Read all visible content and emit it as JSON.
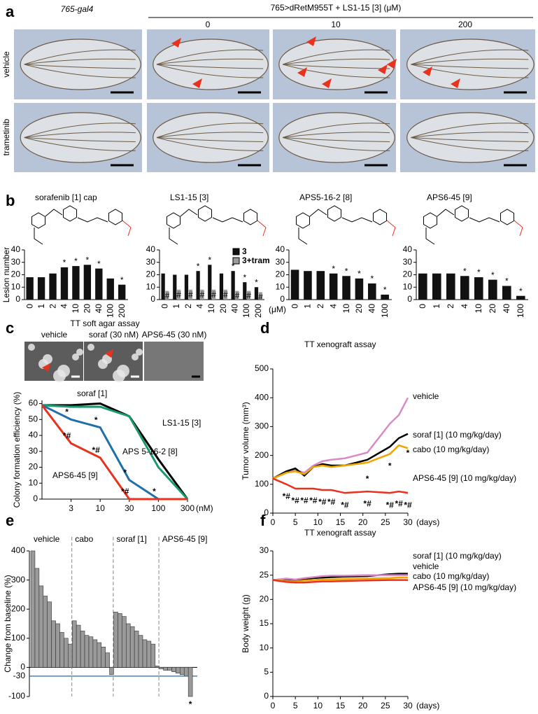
{
  "panel_labels": [
    "a",
    "b",
    "c",
    "d",
    "e",
    "f"
  ],
  "panel_a": {
    "control_header": "765-gal4",
    "treatment_header": "765>dRetM955T + LS1-15 [3] (μM)",
    "doses": [
      "0",
      "10",
      "200"
    ],
    "rows": [
      "vehicle",
      "trametinib"
    ]
  },
  "panel_c_images": {
    "title": "TT soft agar assay",
    "labels": [
      "vehicle",
      "soraf (30 nM)",
      "APS6-45 (30 nM)"
    ]
  },
  "chart_data": [
    {
      "type": "bar",
      "title": "sorafenib [1] cap",
      "title_color": "#000000",
      "ylabel": "Lesion number",
      "categories": [
        "0",
        "1",
        "2",
        "4",
        "10",
        "20",
        "40",
        "100",
        "200"
      ],
      "values": [
        18,
        18,
        21,
        26,
        27,
        28,
        25,
        17,
        12
      ],
      "color": "#111111",
      "significance": [
        null,
        null,
        null,
        "*",
        "*",
        "*",
        "*",
        null,
        "*"
      ],
      "ylim": [
        0,
        40
      ],
      "yticks": [
        0,
        10,
        20,
        30,
        40
      ]
    },
    {
      "type": "bar",
      "title": "LS1-15 [3]",
      "title_color": "#1a9a6a",
      "xlabel": "(μM)",
      "categories": [
        "0",
        "1",
        "2",
        "4",
        "10",
        "20",
        "40",
        "100",
        "200"
      ],
      "series": [
        {
          "name": "3",
          "color": "#111111",
          "values": [
            21,
            20,
            20,
            23,
            28,
            21,
            23,
            14,
            10
          ],
          "significance": [
            null,
            null,
            null,
            "*",
            "*",
            null,
            "*",
            "*",
            "*"
          ]
        },
        {
          "name": "3+tram",
          "color": "#9a9a9a",
          "values": [
            7,
            8,
            8,
            8,
            8,
            8,
            7,
            7,
            6
          ],
          "significance": [
            "#",
            "#",
            "#",
            "#",
            "#",
            "#",
            "#",
            "#",
            "#"
          ]
        }
      ],
      "ylim": [
        0,
        40
      ],
      "yticks": [
        0,
        10,
        20,
        30,
        40
      ]
    },
    {
      "type": "bar",
      "title": "APS5-16-2 [8]",
      "title_color": "#1f6fa8",
      "categories": [
        "0",
        "1",
        "2",
        "4",
        "10",
        "20",
        "40",
        "100"
      ],
      "values": [
        24,
        23,
        23,
        21,
        19,
        17,
        13,
        4
      ],
      "color": "#111111",
      "significance": [
        null,
        null,
        null,
        "*",
        "*",
        "*",
        "*",
        "*"
      ],
      "ylim": [
        0,
        40
      ],
      "yticks": [
        0,
        10,
        20,
        30,
        40
      ]
    },
    {
      "type": "bar",
      "title": "APS6-45 [9]",
      "title_color": "#e8321e",
      "categories": [
        "0",
        "1",
        "2",
        "4",
        "10",
        "20",
        "40",
        "100"
      ],
      "values": [
        21,
        21,
        21,
        19,
        18,
        16,
        11,
        3
      ],
      "color": "#111111",
      "significance": [
        null,
        null,
        null,
        "*",
        "*",
        "*",
        "*",
        "*"
      ],
      "ylim": [
        0,
        40
      ],
      "yticks": [
        0,
        10,
        20,
        30,
        40
      ]
    },
    {
      "type": "catline",
      "ylabel": "Colony formation efficiency (%)",
      "xlabel": "(nM)",
      "categories": [
        null,
        "3",
        "10",
        "30",
        "100",
        "300"
      ],
      "series": [
        {
          "name": "soraf [1]",
          "color": "#000000",
          "values": [
            59,
            59,
            60,
            52,
            25,
            0
          ],
          "significance": [
            null,
            null,
            null,
            null,
            null,
            null
          ]
        },
        {
          "name": "LS1-15 [3]",
          "color": "#1a9a6a",
          "values": [
            59,
            58,
            58,
            52,
            20,
            0
          ],
          "significance": [
            null,
            null,
            null,
            null,
            null,
            null
          ]
        },
        {
          "name": "APS 5-16-2 [8]",
          "color": "#1f6fa8",
          "values": [
            59,
            50,
            45,
            12,
            0,
            0
          ],
          "significance": [
            null,
            "*",
            "*",
            "*",
            "*",
            null
          ]
        },
        {
          "name": "APS6-45 [9]",
          "color": "#e8321e",
          "values": [
            59,
            35,
            26,
            0,
            0,
            0
          ],
          "significance": [
            null,
            "*#",
            "*#",
            "*#",
            null,
            null
          ]
        }
      ],
      "ylim": [
        0,
        62
      ],
      "yticks": [
        0,
        10,
        20,
        30,
        40,
        50,
        60
      ]
    },
    {
      "type": "line",
      "title": "TT xenograft assay",
      "ylabel": "Tumor volume (mm³)",
      "xlabel": "(days)",
      "x": [
        0,
        3,
        5,
        7,
        9,
        11,
        13,
        16,
        21,
        26,
        28,
        30
      ],
      "series": [
        {
          "name": "vehicle",
          "color": "#d98ac4",
          "values": [
            120,
            140,
            150,
            140,
            165,
            180,
            185,
            190,
            210,
            310,
            340,
            400
          ],
          "significance": null
        },
        {
          "name": "soraf [1] (10 mg/kg/day)",
          "color": "#000000",
          "values": [
            120,
            145,
            155,
            130,
            160,
            170,
            165,
            165,
            185,
            230,
            260,
            275
          ],
          "significance": [
            null,
            null,
            null,
            null,
            null,
            null,
            null,
            null,
            "*",
            "*",
            null,
            "*"
          ]
        },
        {
          "name": "cabo (10 mg/kg/day)",
          "color": "#f0a500",
          "values": [
            120,
            140,
            145,
            135,
            160,
            165,
            160,
            165,
            175,
            205,
            235,
            225
          ],
          "significance": null
        },
        {
          "name": "APS6-45 [9] (10 mg/kg/day)",
          "color": "#e8321e",
          "values": [
            120,
            100,
            85,
            85,
            85,
            80,
            80,
            70,
            75,
            70,
            75,
            70
          ],
          "significance": [
            null,
            "*#",
            "*#",
            "*#",
            "*#",
            "*#",
            "*#",
            "*#",
            "*#",
            "*#",
            "*#",
            "*#"
          ]
        }
      ],
      "xlim": [
        0,
        30
      ],
      "xticks": [
        0,
        5,
        10,
        15,
        20,
        25,
        30
      ],
      "ylim": [
        0,
        500
      ],
      "yticks": [
        0,
        100,
        200,
        300,
        400,
        500
      ]
    },
    {
      "type": "waterfall",
      "ylabel": "Change from baseline (%)",
      "bar_color": "#9a9a9a",
      "ref_line": -30,
      "ref_color": "#1f6fa8",
      "series": [
        {
          "name": "vehicle",
          "color": "#d98ac4",
          "values": [
            400,
            340,
            280,
            245,
            225,
            160,
            150,
            120,
            100,
            80
          ],
          "significance": null
        },
        {
          "name": "cabo",
          "color": "#f0a500",
          "values": [
            160,
            145,
            125,
            110,
            105,
            95,
            85,
            70,
            50,
            -25
          ],
          "significance": null
        },
        {
          "name": "soraf [1]",
          "color": "#000000",
          "values": [
            190,
            185,
            175,
            150,
            140,
            125,
            110,
            95,
            90,
            80,
            5
          ],
          "significance": null
        },
        {
          "name": "APS6-45 [9]",
          "color": "#e8321e",
          "values": [
            -5,
            -10,
            -10,
            -15,
            -20,
            -25,
            -30,
            -100
          ],
          "significance": [
            null,
            null,
            null,
            null,
            null,
            null,
            null,
            "*"
          ]
        }
      ],
      "ylim": [
        -100,
        400
      ],
      "yticks": [
        -100,
        0,
        100,
        200,
        300,
        400
      ]
    },
    {
      "type": "line",
      "title": "TT xenograft assay",
      "ylabel": "Body weight (g)",
      "xlabel": "(days)",
      "x": [
        0,
        3,
        5,
        7,
        9,
        11,
        13,
        16,
        21,
        26,
        28,
        30
      ],
      "series": [
        {
          "name": "soraf [1] (10 mg/kg/day)",
          "color": "#000000",
          "values": [
            24,
            24.2,
            24,
            24.2,
            24.4,
            24.5,
            24.6,
            24.7,
            24.8,
            25.2,
            25.3,
            25.3
          ],
          "significance": null
        },
        {
          "name": "vehicle",
          "color": "#d98ac4",
          "values": [
            24,
            24.3,
            24.1,
            24.4,
            24.6,
            24.8,
            24.9,
            24.9,
            25,
            25,
            25,
            25
          ],
          "significance": null
        },
        {
          "name": "cabo (10 mg/kg/day)",
          "color": "#f0a500",
          "values": [
            24,
            23.8,
            23.7,
            23.9,
            24,
            24.1,
            24.1,
            24.2,
            24.3,
            24.4,
            24.5,
            24.5
          ],
          "significance": null
        },
        {
          "name": "APS6-45 [9] (10 mg/kg/day)",
          "color": "#e8321e",
          "values": [
            24,
            23.6,
            23.5,
            23.5,
            23.6,
            23.7,
            23.7,
            23.8,
            23.9,
            24,
            24,
            24
          ],
          "significance": null
        }
      ],
      "xlim": [
        0,
        30
      ],
      "xticks": [
        0,
        5,
        10,
        15,
        20,
        25,
        30
      ],
      "ylim": [
        0,
        30
      ],
      "yticks": [
        0,
        5,
        10,
        15,
        20,
        25,
        30
      ]
    }
  ]
}
